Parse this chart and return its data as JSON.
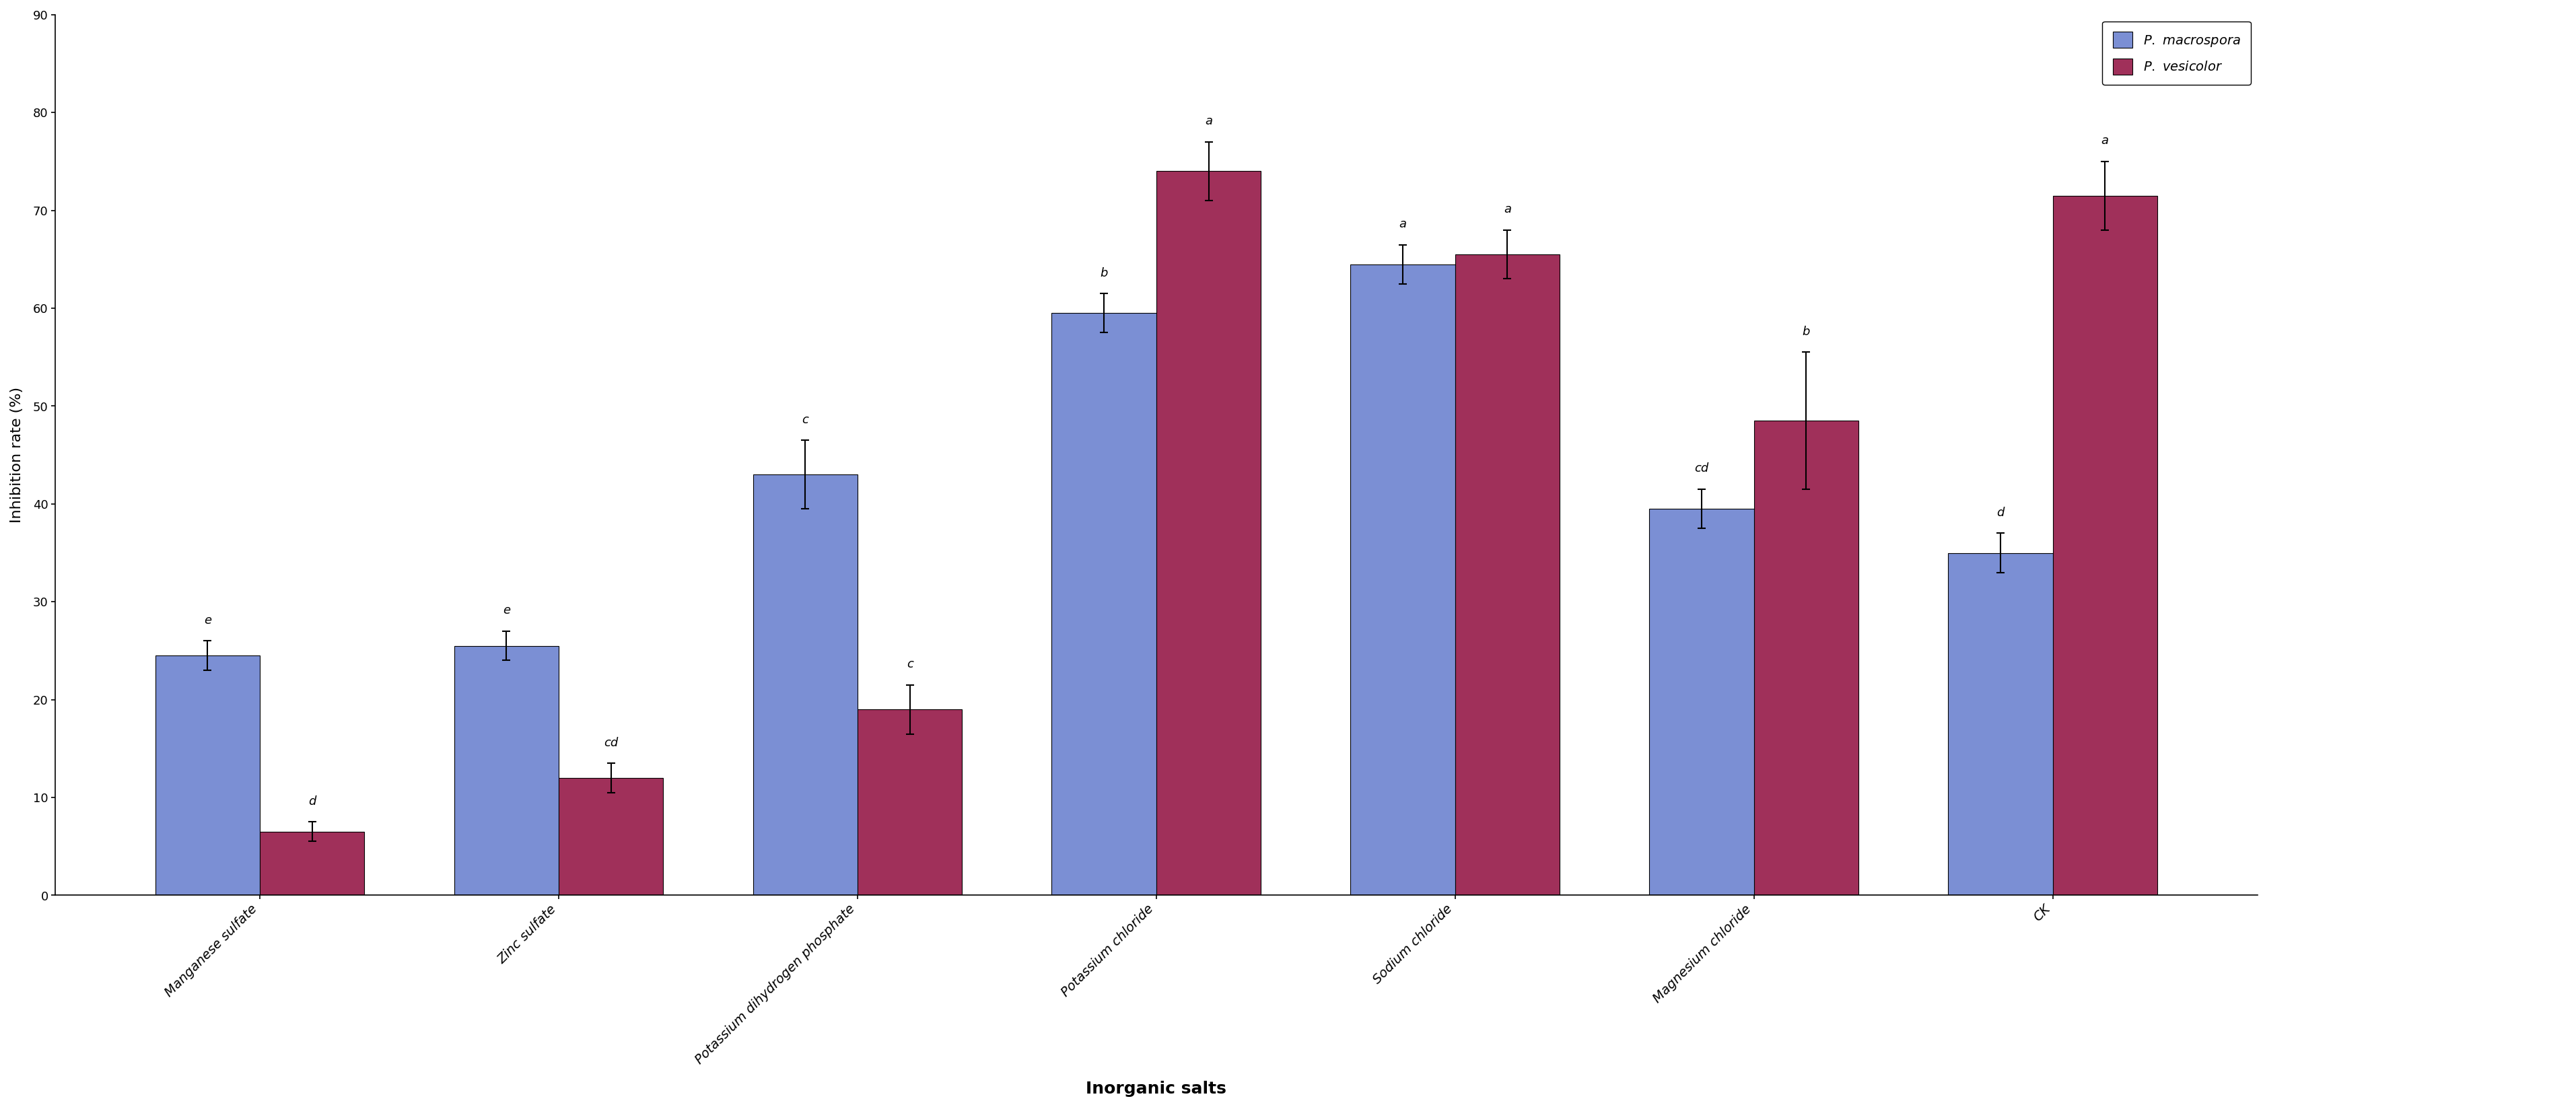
{
  "categories": [
    "Manganese sulfate",
    "Zinc sulfate",
    "Potassium dihydrogen phosphate",
    "Potassium chloride",
    "Sodium chloride",
    "Magnesium chloride",
    "CK"
  ],
  "macrospora_values": [
    24.5,
    25.5,
    43.0,
    59.5,
    64.5,
    39.5,
    35.0
  ],
  "vesicolor_values": [
    6.5,
    12.0,
    19.0,
    74.0,
    65.5,
    48.5,
    71.5
  ],
  "macrospora_errors": [
    1.5,
    1.5,
    3.5,
    2.0,
    2.0,
    2.0,
    2.0
  ],
  "vesicolor_errors": [
    1.0,
    1.5,
    2.5,
    3.0,
    2.5,
    7.0,
    3.5
  ],
  "macrospora_labels": [
    "e",
    "e",
    "c",
    "b",
    "a",
    "cd",
    "d"
  ],
  "vesicolor_labels": [
    "d",
    "cd",
    "c",
    "a",
    "a",
    "b",
    "a"
  ],
  "color_macrospora": "#7B8FD4",
  "color_vesicolor": "#A0305A",
  "ylabel": "Inhibition rate (%)",
  "xlabel": "Inorganic salts",
  "ylim": [
    0,
    90
  ],
  "yticks": [
    0,
    10,
    20,
    30,
    40,
    50,
    60,
    70,
    80,
    90
  ],
  "legend_vesicolor": "P. vesicolor",
  "bar_width": 0.35,
  "background_color": "#FFFFFF"
}
